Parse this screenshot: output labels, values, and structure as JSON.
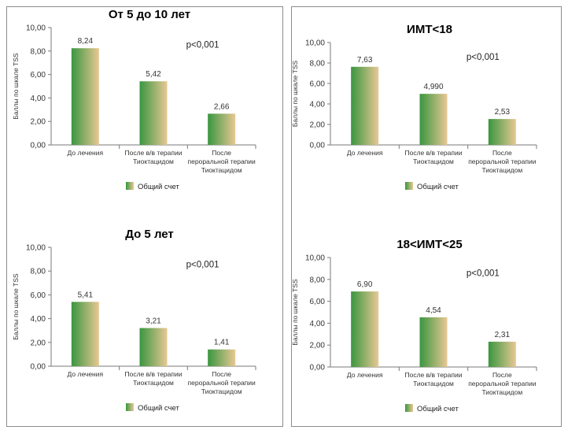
{
  "colors": {
    "bar_dark": "#3a9640",
    "bar_light": "#e8c893",
    "axis": "#7a7a7a",
    "border": "#8c8c8c"
  },
  "chart_data": [
    {
      "type": "bar",
      "title": "От 5 до 10 лет",
      "annotation": "p<0,001",
      "ylabel": "Баллы по шкале TSS",
      "ylim": [
        0,
        10
      ],
      "yticks": [
        "0,00",
        "2,00",
        "4,00",
        "6,00",
        "8,00",
        "10,00"
      ],
      "categories": [
        [
          "До лечения"
        ],
        [
          "После в/в терапии",
          "Тиоктацидом"
        ],
        [
          "После",
          "пероральной терапии",
          "Тиоктацидом"
        ]
      ],
      "series": [
        {
          "name": "Общий счет",
          "values": [
            8.24,
            5.42,
            2.66
          ],
          "labels": [
            "8,24",
            "5,42",
            "2,66"
          ]
        }
      ],
      "legend": "bottom"
    },
    {
      "type": "bar",
      "title": "До 5 лет",
      "annotation": "p<0,001",
      "ylabel": "Баллы по шкале TSS",
      "ylim": [
        0,
        10
      ],
      "yticks": [
        "0,00",
        "2,00",
        "4,00",
        "6,00",
        "8,00",
        "10,00"
      ],
      "categories": [
        [
          "До лечения"
        ],
        [
          "После в/в терапии",
          "Тиоктацидом"
        ],
        [
          "После",
          "пероральной терапии",
          "Тиоктацидом"
        ]
      ],
      "series": [
        {
          "name": "Общий счет",
          "values": [
            5.41,
            3.21,
            1.41
          ],
          "labels": [
            "5,41",
            "3,21",
            "1,41"
          ]
        }
      ],
      "legend": "bottom"
    },
    {
      "type": "bar",
      "title": "ИМТ<18",
      "annotation": "p<0,001",
      "ylabel": "Баллы по шкале TSS",
      "ylim": [
        0,
        10
      ],
      "yticks": [
        "0,00",
        "2,00",
        "4,00",
        "6,00",
        "8,00",
        "10,00"
      ],
      "categories": [
        [
          "До лечения"
        ],
        [
          "После в/в терапии",
          "Тиоктацидом"
        ],
        [
          "После",
          "пероральной терапии",
          "Тиоктацидом"
        ]
      ],
      "series": [
        {
          "name": "Общий счет",
          "values": [
            7.63,
            4.99,
            2.53
          ],
          "labels": [
            "7,63",
            "4,990",
            "2,53"
          ]
        }
      ],
      "legend": "bottom"
    },
    {
      "type": "bar",
      "title": "18<ИМТ<25",
      "annotation": "p<0,001",
      "ylabel": "Баллы по шкале TSS",
      "ylim": [
        0,
        10
      ],
      "yticks": [
        "0,00",
        "2,00",
        "4,00",
        "6,00",
        "8,00",
        "10,00"
      ],
      "categories": [
        [
          "До лечения"
        ],
        [
          "После в/в терапии",
          "Тиоктацидом"
        ],
        [
          "После",
          "пероральной терапии",
          "Тиоктацидом"
        ]
      ],
      "series": [
        {
          "name": "Общий счет",
          "values": [
            6.9,
            4.54,
            2.31
          ],
          "labels": [
            "6,90",
            "4,54",
            "2,31"
          ]
        }
      ],
      "legend": "bottom"
    }
  ]
}
